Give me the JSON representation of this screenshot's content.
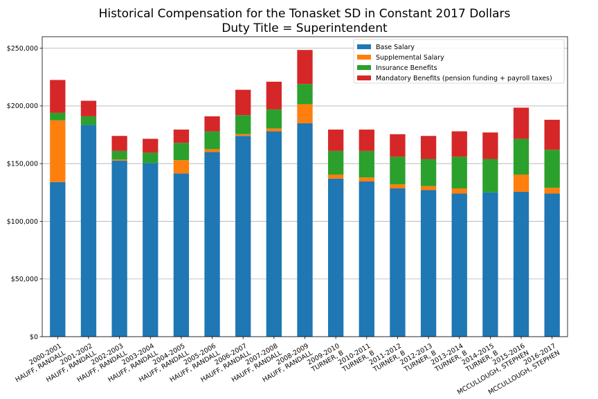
{
  "chart_data": {
    "type": "bar",
    "stacked": true,
    "title": "Historical Compensation for the Tonasket SD in Constant 2017 Dollars",
    "subtitle": "Duty Title = Superintendent",
    "xlabel": "",
    "ylabel": "",
    "ylim": [
      0,
      260000
    ],
    "yticks": [
      0,
      50000,
      100000,
      150000,
      200000,
      250000
    ],
    "ytick_labels": [
      "$0",
      "$50,000",
      "$100,000",
      "$150,000",
      "$200,000",
      "$250,000"
    ],
    "grid": true,
    "legend_position": "top-right",
    "categories": [
      [
        "2000-2001",
        "HAUFF, RANDALL"
      ],
      [
        "2001-2002",
        "HAUFF, RANDALL"
      ],
      [
        "2002-2003",
        "HAUFF, RANDALL"
      ],
      [
        "2003-2004",
        "HAUFF, RANDALL"
      ],
      [
        "2004-2005",
        "HAUFF, RANDALL"
      ],
      [
        "2005-2006",
        "HAUFF, RANDALL"
      ],
      [
        "2006-2007",
        "HAUFF, RANDALL"
      ],
      [
        "2007-2008",
        "HAUFF, RANDALL"
      ],
      [
        "2008-2009",
        "HAUFF, RANDALL"
      ],
      [
        "2009-2010",
        "TURNER, B"
      ],
      [
        "2010-2011",
        "TURNER, B"
      ],
      [
        "2011-2012",
        "TURNER, B"
      ],
      [
        "2012-2013",
        "TURNER, B"
      ],
      [
        "2013-2014",
        "TURNER, B"
      ],
      [
        "2014-2015",
        "TURNER, B"
      ],
      [
        "2015-2016",
        "MCCULLOUGH, STEPHEN"
      ],
      [
        "2016-2017",
        "MCCULLOUGH, STEPHEN"
      ]
    ],
    "series": [
      {
        "name": "Base Salary",
        "color": "#1f77b4",
        "values": [
          134000,
          183500,
          152500,
          150500,
          141500,
          160000,
          174000,
          178000,
          185000,
          137000,
          134500,
          128500,
          127000,
          124000,
          125000,
          125500,
          124000
        ]
      },
      {
        "name": "Supplemental Salary",
        "color": "#ff7f0e",
        "values": [
          53500,
          0,
          1000,
          0,
          11500,
          2500,
          1500,
          2500,
          16500,
          3500,
          3500,
          3500,
          3500,
          4500,
          0,
          15000,
          5000
        ]
      },
      {
        "name": "Insurance Benefits",
        "color": "#2ca02c",
        "values": [
          6500,
          7500,
          7500,
          9000,
          15000,
          15500,
          16500,
          16500,
          17500,
          20500,
          23000,
          24000,
          23500,
          27500,
          29000,
          31000,
          33000
        ]
      },
      {
        "name": "Mandatory Benefits (pension funding + payroll taxes)",
        "color": "#d62728",
        "values": [
          28500,
          13500,
          13000,
          12000,
          11500,
          13000,
          22000,
          24000,
          29500,
          18500,
          18500,
          19500,
          20000,
          22000,
          23000,
          27000,
          26000
        ]
      }
    ]
  }
}
